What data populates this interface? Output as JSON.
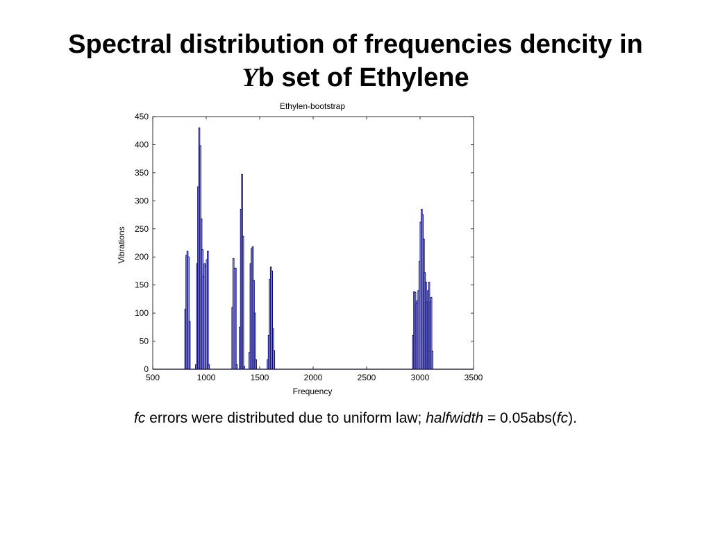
{
  "slide": {
    "title_line1": "Spectral distribution of frequencies dencity in",
    "title_y": "Y",
    "title_line2_rest": "b set of Ethylene"
  },
  "caption": {
    "fc1": "fc",
    "text1": " errors were distributed due to uniform law; ",
    "halfwidth": "halfwidth",
    "text2": " = 0.05abs(",
    "fc2": "fc",
    "text3": ")."
  },
  "chart_data": {
    "type": "bar",
    "title": "Ethylen-bootstrap",
    "xlabel": "Frequency",
    "ylabel": "Vibrations",
    "xlim": [
      500,
      3500
    ],
    "ylim": [
      0,
      450
    ],
    "xticks": [
      "500",
      "1000",
      "1500",
      "2000",
      "2500",
      "3000",
      "3500"
    ],
    "yticks": [
      "0",
      "50",
      "100",
      "150",
      "200",
      "250",
      "300",
      "350",
      "400",
      "450"
    ],
    "grid": false,
    "bar_color": "#000080",
    "bin_width": 10,
    "bars": [
      [
        800,
        107
      ],
      [
        810,
        203
      ],
      [
        820,
        210
      ],
      [
        830,
        200
      ],
      [
        840,
        85
      ],
      [
        900,
        8
      ],
      [
        910,
        188
      ],
      [
        920,
        325
      ],
      [
        930,
        430
      ],
      [
        940,
        398
      ],
      [
        950,
        268
      ],
      [
        960,
        213
      ],
      [
        970,
        165
      ],
      [
        980,
        188
      ],
      [
        990,
        183
      ],
      [
        1000,
        195
      ],
      [
        1010,
        210
      ],
      [
        1020,
        8
      ],
      [
        1240,
        110
      ],
      [
        1250,
        197
      ],
      [
        1260,
        180
      ],
      [
        1270,
        180
      ],
      [
        1280,
        8
      ],
      [
        1310,
        75
      ],
      [
        1320,
        285
      ],
      [
        1330,
        347
      ],
      [
        1340,
        237
      ],
      [
        1350,
        5
      ],
      [
        1400,
        30
      ],
      [
        1410,
        188
      ],
      [
        1420,
        215
      ],
      [
        1430,
        218
      ],
      [
        1440,
        158
      ],
      [
        1450,
        100
      ],
      [
        1460,
        17
      ],
      [
        1570,
        17
      ],
      [
        1580,
        60
      ],
      [
        1590,
        160
      ],
      [
        1600,
        182
      ],
      [
        1610,
        175
      ],
      [
        1620,
        72
      ],
      [
        1630,
        33
      ],
      [
        2930,
        60
      ],
      [
        2940,
        138
      ],
      [
        2950,
        137
      ],
      [
        2960,
        118
      ],
      [
        2970,
        122
      ],
      [
        2980,
        140
      ],
      [
        2990,
        192
      ],
      [
        3000,
        262
      ],
      [
        3010,
        285
      ],
      [
        3020,
        275
      ],
      [
        3030,
        232
      ],
      [
        3040,
        172
      ],
      [
        3050,
        155
      ],
      [
        3060,
        120
      ],
      [
        3070,
        140
      ],
      [
        3080,
        155
      ],
      [
        3090,
        120
      ],
      [
        3100,
        128
      ],
      [
        3110,
        32
      ]
    ]
  }
}
